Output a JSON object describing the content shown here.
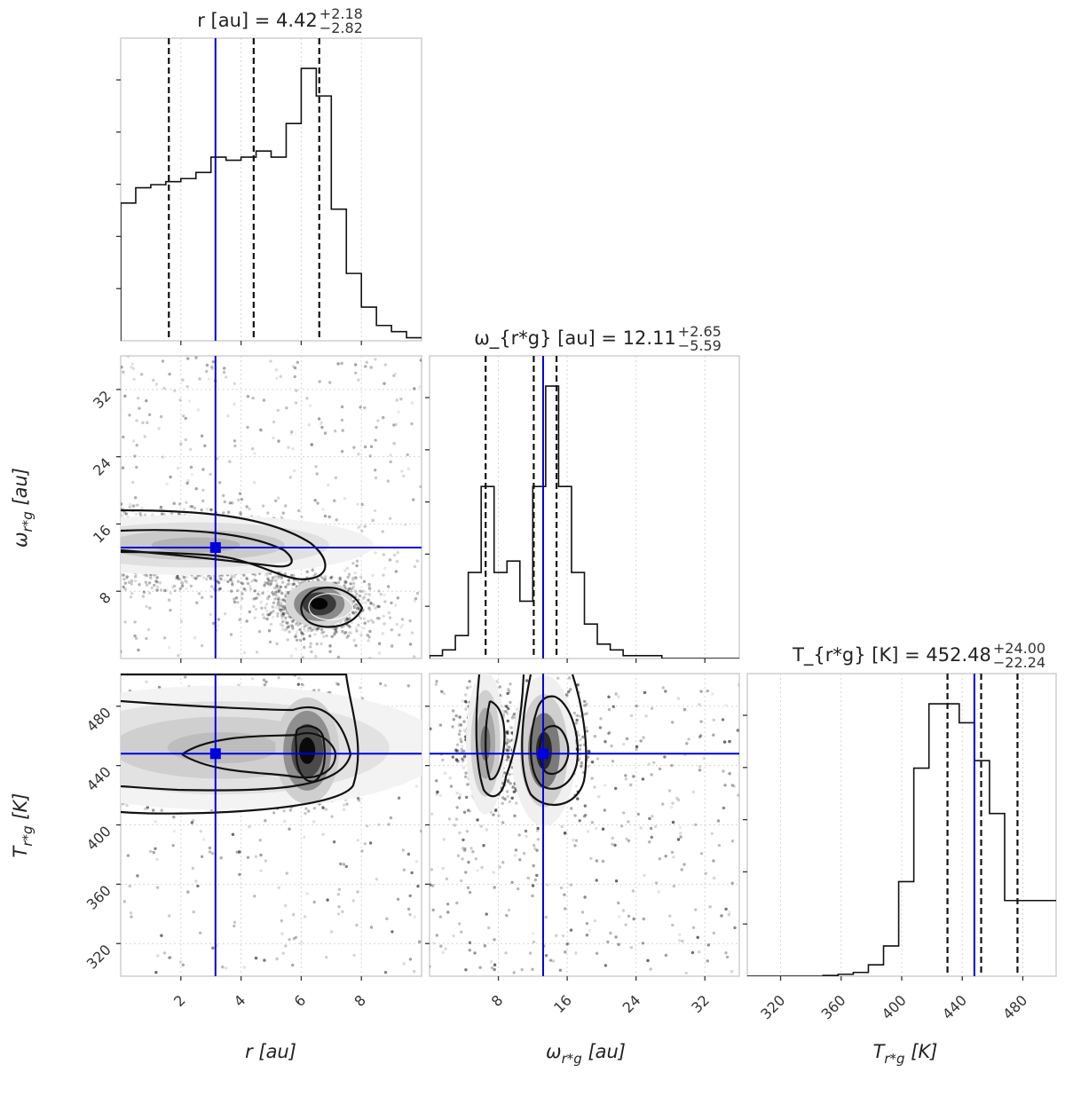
{
  "figure": {
    "type": "corner-plot"
  },
  "colors": {
    "truth": "#0000dd",
    "hist": "#111111",
    "contour": "#111111",
    "grid": "#d5d5d5"
  },
  "labels": {
    "x0": "r [au]",
    "x1": "ω_{r*g} [au]",
    "x2": "T_{r*g} [K]",
    "y1": "ω_{r*g} [au]",
    "y2": "T_{r*g} [K]"
  },
  "titles": {
    "p0": {
      "prefix": "r [au] = ",
      "value": "4.42",
      "plus": "+2.18",
      "minus": "−2.82"
    },
    "p1": {
      "prefix": "ω_{r*g} [au] = ",
      "value": "12.11",
      "plus": "+2.65",
      "minus": "−5.59"
    },
    "p2": {
      "prefix": "T_{r*g} [K] = ",
      "value": "452.48",
      "plus": "+24.00",
      "minus": "−22.24"
    }
  },
  "chart_data": {
    "type": "corner",
    "parameters": [
      "r [au]",
      "ω_{r*g} [au]",
      "T_{r*g} [K]"
    ],
    "truths": [
      3.15,
      13.2,
      448
    ],
    "ranges": [
      [
        0,
        10
      ],
      [
        0,
        36
      ],
      [
        298,
        502
      ]
    ],
    "ticks": [
      [
        2,
        4,
        6,
        8
      ],
      [
        8,
        16,
        24,
        32
      ],
      [
        320,
        360,
        400,
        440,
        480
      ]
    ],
    "quantiles": [
      [
        1.6,
        4.42,
        6.6
      ],
      [
        6.52,
        12.11,
        14.76
      ],
      [
        430.24,
        452.48,
        476.48
      ]
    ],
    "histograms": [
      {
        "edges_start": 0,
        "bin": 0.5,
        "counts": [
          0.45,
          0.5,
          0.51,
          0.52,
          0.53,
          0.55,
          0.6,
          0.59,
          0.6,
          0.62,
          0.6,
          0.71,
          0.89,
          0.8,
          0.43,
          0.22,
          0.11,
          0.05,
          0.03,
          0.01
        ]
      },
      {
        "edges_start": 0,
        "bin": 1.5,
        "counts": [
          0.01,
          0.03,
          0.08,
          0.3,
          0.6,
          0.3,
          0.34,
          0.2,
          0.6,
          0.95,
          0.6,
          0.3,
          0.12,
          0.05,
          0.03,
          0.01,
          0.01,
          0.01,
          0.0,
          0.0,
          0.0,
          0.0,
          0.0,
          0.0
        ]
      },
      {
        "edges_start": 298,
        "bin": 10,
        "counts": [
          0.0,
          0.0,
          0.0,
          0.0,
          0.0,
          0.002,
          0.005,
          0.01,
          0.03,
          0.08,
          0.25,
          0.55,
          0.72,
          0.72,
          0.67,
          0.57,
          0.43,
          0.2,
          0.2,
          0.2,
          0.2
        ]
      }
    ],
    "scatter_summary": [
      {
        "pair": "r vs ω",
        "mode1": [
          1.5,
          13.5
        ],
        "mode2": [
          6.6,
          6.5
        ]
      },
      {
        "pair": "r vs T",
        "mode1": [
          3.0,
          450
        ],
        "mode2": [
          6.2,
          450
        ]
      },
      {
        "pair": "ω vs T",
        "mode1": [
          6.5,
          455
        ],
        "mode2": [
          13.3,
          450
        ]
      }
    ]
  }
}
